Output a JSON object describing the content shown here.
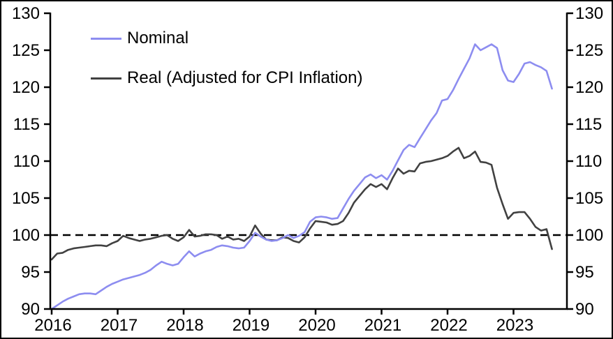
{
  "figure": {
    "background_color": "#ffffff",
    "frame_color": "#000000"
  },
  "chart_data": {
    "type": "line",
    "title": "",
    "xlabel": "",
    "ylabel": "",
    "x_start": "2016-01",
    "x_end": "2023-08",
    "frequency": "monthly",
    "x_tick_labels": [
      "2016",
      "2017",
      "2018",
      "2019",
      "2020",
      "2021",
      "2022",
      "2023"
    ],
    "y_ticks": [
      90,
      95,
      100,
      105,
      110,
      115,
      120,
      125,
      130
    ],
    "ylim": [
      90,
      130
    ],
    "grid": false,
    "mirrored_y_axis": true,
    "legend_position": "upper-left",
    "reference_line": {
      "value": 100,
      "style": "dashed",
      "color": "#000000"
    },
    "series": [
      {
        "name": "Nominal",
        "color": "#8d8df0",
        "values": [
          90.0,
          90.5,
          91.0,
          91.4,
          91.7,
          92.0,
          92.1,
          92.1,
          92.0,
          92.5,
          93.0,
          93.4,
          93.7,
          94.0,
          94.2,
          94.4,
          94.6,
          94.9,
          95.3,
          95.9,
          96.4,
          96.1,
          95.9,
          96.1,
          97.0,
          97.8,
          97.1,
          97.5,
          97.8,
          98.0,
          98.4,
          98.6,
          98.5,
          98.3,
          98.2,
          98.3,
          99.2,
          100.3,
          99.8,
          99.4,
          99.2,
          99.3,
          99.6,
          100.0,
          99.6,
          99.9,
          100.4,
          101.8,
          102.4,
          102.5,
          102.4,
          102.2,
          102.3,
          103.6,
          104.9,
          106.0,
          106.9,
          107.8,
          108.2,
          107.7,
          108.1,
          107.5,
          108.7,
          110.1,
          111.5,
          112.2,
          111.9,
          113.1,
          114.3,
          115.5,
          116.5,
          118.2,
          118.4,
          119.6,
          121.1,
          122.5,
          123.9,
          125.8,
          125.0,
          125.4,
          125.8,
          125.3,
          122.3,
          120.9,
          120.7,
          121.8,
          123.2,
          123.4,
          123.0,
          122.7,
          122.2,
          119.8
        ]
      },
      {
        "name": "Real (Adjusted for CPI Inflation)",
        "color": "#414141",
        "values": [
          96.7,
          97.5,
          97.6,
          98.0,
          98.2,
          98.3,
          98.4,
          98.5,
          98.6,
          98.6,
          98.5,
          98.9,
          99.2,
          99.9,
          99.6,
          99.4,
          99.2,
          99.4,
          99.5,
          99.7,
          99.9,
          100.0,
          99.5,
          99.2,
          99.7,
          100.7,
          99.8,
          99.9,
          100.1,
          100.1,
          100.0,
          99.5,
          99.8,
          99.4,
          99.5,
          99.2,
          99.8,
          101.3,
          100.2,
          99.4,
          99.3,
          99.3,
          99.7,
          99.6,
          99.2,
          99.0,
          99.7,
          100.9,
          101.9,
          101.8,
          101.7,
          101.4,
          101.5,
          101.9,
          103.0,
          104.4,
          105.3,
          106.2,
          106.9,
          106.5,
          106.9,
          106.2,
          107.7,
          109.0,
          108.3,
          108.7,
          108.6,
          109.7,
          109.9,
          110.0,
          110.2,
          110.4,
          110.7,
          111.3,
          111.8,
          110.4,
          110.7,
          111.3,
          109.9,
          109.8,
          109.5,
          106.4,
          104.2,
          102.2,
          103.0,
          103.1,
          103.1,
          102.2,
          101.1,
          100.6,
          100.8,
          98.1
        ]
      }
    ]
  }
}
